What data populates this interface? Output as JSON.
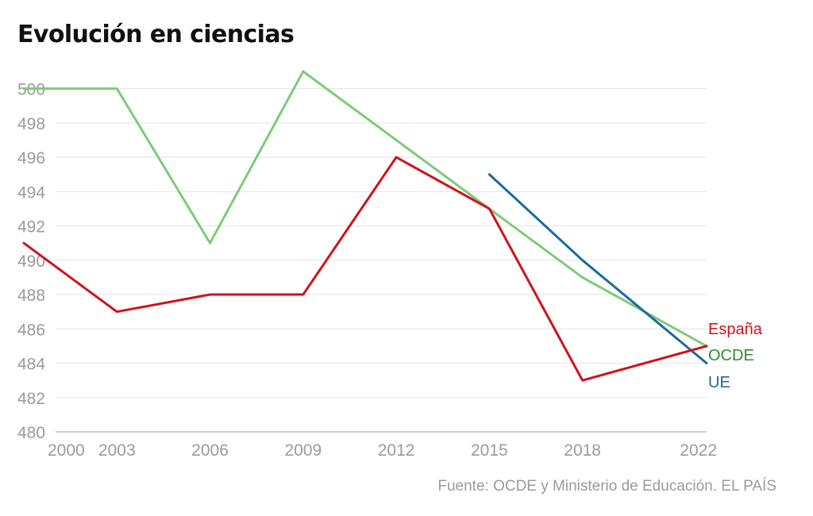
{
  "title": "Evolución en ciencias",
  "source": "Fuente: OCDE y Ministerio de Educación. EL PAÍS",
  "chart_data": {
    "type": "line",
    "title": "Evolución en ciencias",
    "xlabel": "",
    "ylabel": "",
    "x": [
      2000,
      2003,
      2006,
      2009,
      2012,
      2015,
      2018,
      2022
    ],
    "x_tick_labels": [
      "2000",
      "2003",
      "2006",
      "2009",
      "2012",
      "2015",
      "2018",
      "2022"
    ],
    "ylim": [
      480,
      501
    ],
    "y_ticks": [
      480,
      482,
      484,
      486,
      488,
      490,
      492,
      494,
      496,
      498,
      500
    ],
    "grid": true,
    "legend": "right end labels",
    "series": [
      {
        "name": "España",
        "color": "#d0121b",
        "values": [
          491,
          487,
          488,
          488,
          496,
          493,
          483,
          485
        ]
      },
      {
        "name": "OCDE",
        "color": "#7dcb78",
        "label_color": "#2e8b2e",
        "values": [
          500,
          500,
          491,
          501,
          497,
          493,
          489,
          485
        ]
      },
      {
        "name": "UE",
        "color": "#1b6a9a",
        "values": [
          null,
          null,
          null,
          null,
          null,
          495,
          490,
          484
        ]
      }
    ]
  }
}
